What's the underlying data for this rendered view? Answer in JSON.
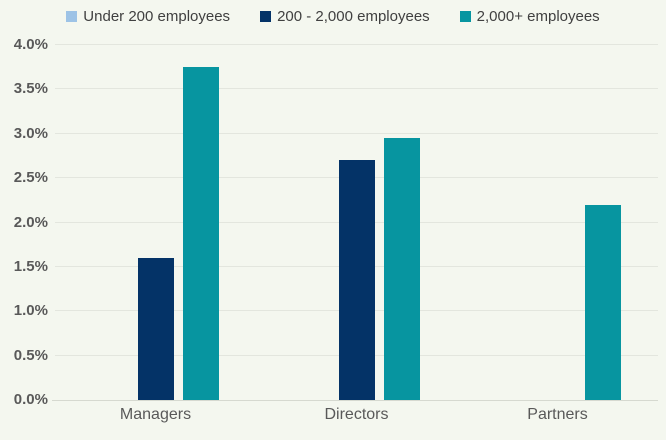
{
  "colors": {
    "background": "#f4f7ef",
    "gridline": "#e3e6de",
    "axis_line": "#d6d9d0",
    "tick_text": "#595959",
    "legend_text": "#404040"
  },
  "chart_data": {
    "type": "bar",
    "title": "",
    "xlabel": "",
    "ylabel": "",
    "categories": [
      "Managers",
      "Directors",
      "Partners"
    ],
    "series": [
      {
        "name": "Under 200 employees",
        "color": "#9dc3e6",
        "values": [
          0,
          0,
          0
        ]
      },
      {
        "name": "200 - 2,000 employees",
        "color": "#043367",
        "values": [
          1.6,
          2.7,
          0
        ]
      },
      {
        "name": "2,000+ employees",
        "color": "#0795a0",
        "values": [
          3.75,
          2.95,
          2.2
        ]
      }
    ],
    "ylim": [
      0,
      4.0
    ],
    "ytick_step": 0.5,
    "yticks": [
      "0.0%",
      "0.5%",
      "1.0%",
      "1.5%",
      "2.0%",
      "2.5%",
      "3.0%",
      "3.5%",
      "4.0%"
    ],
    "grid": true,
    "legend_position": "top"
  }
}
